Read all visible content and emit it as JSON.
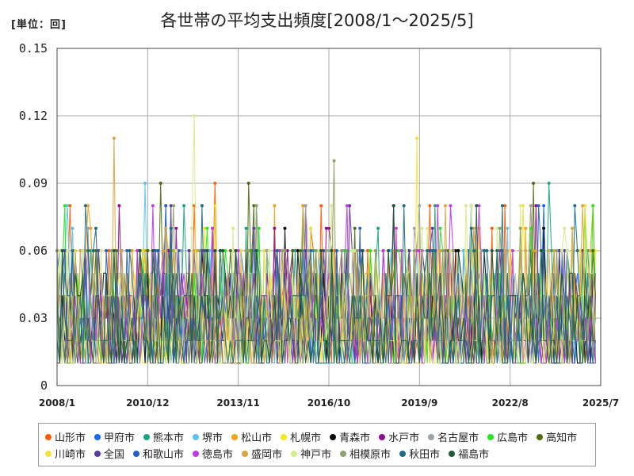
{
  "header": {
    "unit": "[単位：回]",
    "title": "各世帯の平均支出頻度[2008/1～2025/5]"
  },
  "chart_data": {
    "type": "line",
    "title": "各世帯の平均支出頻度[2008/1～2025/5]",
    "unit_label": "[単位：回]",
    "xlabel": "",
    "ylabel": "",
    "x_ticks": [
      "2008/1",
      "2010/12",
      "2013/11",
      "2016/10",
      "2019/9",
      "2022/8",
      "2025/7"
    ],
    "y_ticks": [
      "0",
      "0.03",
      "0.06",
      "0.09",
      "0.12",
      "0.15"
    ],
    "ylim": [
      0,
      0.15
    ],
    "grid": true,
    "legend_position": "bottom",
    "series": [
      {
        "name": "山形市",
        "color": "#ff5a00"
      },
      {
        "name": "甲府市",
        "color": "#1465ff"
      },
      {
        "name": "熊本市",
        "color": "#1aa381"
      },
      {
        "name": "堺市",
        "color": "#5bc4ee"
      },
      {
        "name": "松山市",
        "color": "#f2a31a"
      },
      {
        "name": "札幌市",
        "color": "#f6e625"
      },
      {
        "name": "青森市",
        "color": "#0c0c0c"
      },
      {
        "name": "水戸市",
        "color": "#8d0e97"
      },
      {
        "name": "名古屋市",
        "color": "#9aa4ab"
      },
      {
        "name": "広島市",
        "color": "#26e41e"
      },
      {
        "name": "高知市",
        "color": "#4d6c0d"
      },
      {
        "name": "川崎市",
        "color": "#f3e237"
      },
      {
        "name": "全国",
        "color": "#5a3aa6"
      },
      {
        "name": "和歌山市",
        "color": "#2a5ec0"
      },
      {
        "name": "徳島市",
        "color": "#c239e0"
      },
      {
        "name": "盛岡市",
        "color": "#d9a444"
      },
      {
        "name": "神戸市",
        "color": "#d5ec8c"
      },
      {
        "name": "相模原市",
        "color": "#8ea06c"
      },
      {
        "name": "秋田市",
        "color": "#1f6d80"
      },
      {
        "name": "福島市",
        "color": "#1d5a34"
      }
    ],
    "notable_peaks": [
      {
        "series": "神戸市",
        "x": "2012/6",
        "y": 0.12
      },
      {
        "series": "盛岡市",
        "x": "2009/11",
        "y": 0.11
      },
      {
        "series": "川崎市",
        "x": "2019/8",
        "y": 0.11
      },
      {
        "series": "相模原市",
        "x": "2016/12",
        "y": 0.1
      },
      {
        "series": "山形市",
        "x": "2013/2",
        "y": 0.09
      },
      {
        "series": "堺市",
        "x": "2010/11",
        "y": 0.09
      },
      {
        "series": "高知市",
        "x": "2011/5",
        "y": 0.09
      },
      {
        "series": "高知市",
        "x": "2014/3",
        "y": 0.09
      },
      {
        "series": "高知市",
        "x": "2023/5",
        "y": 0.09
      },
      {
        "series": "熊本市",
        "x": "2023/11",
        "y": 0.09
      }
    ]
  }
}
